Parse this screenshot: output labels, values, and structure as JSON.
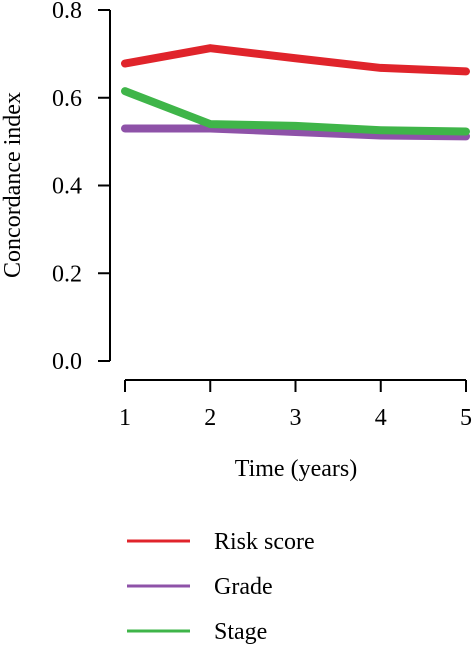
{
  "chart_data": {
    "type": "line",
    "title": "",
    "xlabel": "Time (years)",
    "ylabel": "Concordance index",
    "x": [
      1,
      2,
      3,
      4,
      5
    ],
    "xticks": [
      "1",
      "2",
      "3",
      "4",
      "5"
    ],
    "yticks": [
      "0.0",
      "0.2",
      "0.4",
      "0.6",
      "0.8"
    ],
    "ylim": [
      0,
      0.8
    ],
    "xlim": [
      1,
      5
    ],
    "grid": false,
    "legend_position": "bottom",
    "series": [
      {
        "name": "Risk score",
        "color": "#e0242b",
        "values": [
          0.678,
          0.713,
          0.69,
          0.668,
          0.66
        ]
      },
      {
        "name": "Grade",
        "color": "#8e52a8",
        "values": [
          0.53,
          0.53,
          0.522,
          0.514,
          0.512
        ]
      },
      {
        "name": "Stage",
        "color": "#3fb549",
        "values": [
          0.615,
          0.54,
          0.536,
          0.526,
          0.523
        ]
      }
    ]
  }
}
